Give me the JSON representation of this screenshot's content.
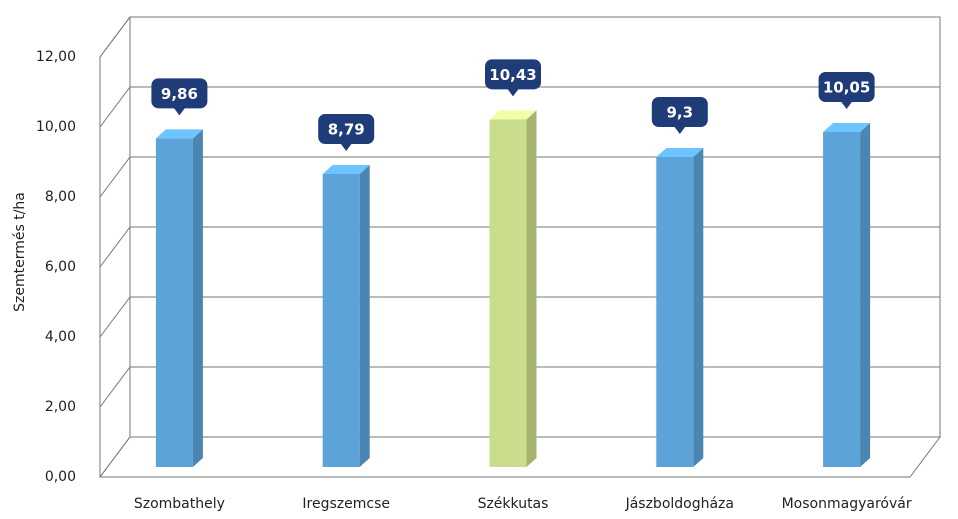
{
  "chart_data": {
    "type": "bar3d",
    "y_axis_label": "Szemtermés t/ha",
    "categories": [
      "Szombathely",
      "Iregszemcse",
      "Székkutas",
      "Jászboldogháza",
      "Mosonmagyaróvár"
    ],
    "values": [
      9.86,
      8.79,
      10.43,
      9.3,
      10.05
    ],
    "value_labels": [
      "9,86",
      "8,79",
      "10,43",
      "9,3",
      "10,05"
    ],
    "colors": [
      "#5ba3d9",
      "#5ba3d9",
      "#c9dd8a",
      "#5ba3d9",
      "#5ba3d9"
    ],
    "ylim": [
      0,
      12
    ],
    "yticks": [
      {
        "value": 0,
        "label": "0,00"
      },
      {
        "value": 2,
        "label": "2,00"
      },
      {
        "value": 4,
        "label": "4,00"
      },
      {
        "value": 6,
        "label": "6,00"
      },
      {
        "value": 8,
        "label": "8,00"
      },
      {
        "value": 10,
        "label": "10,00"
      },
      {
        "value": 12,
        "label": "12,00"
      }
    ],
    "grid": true
  }
}
